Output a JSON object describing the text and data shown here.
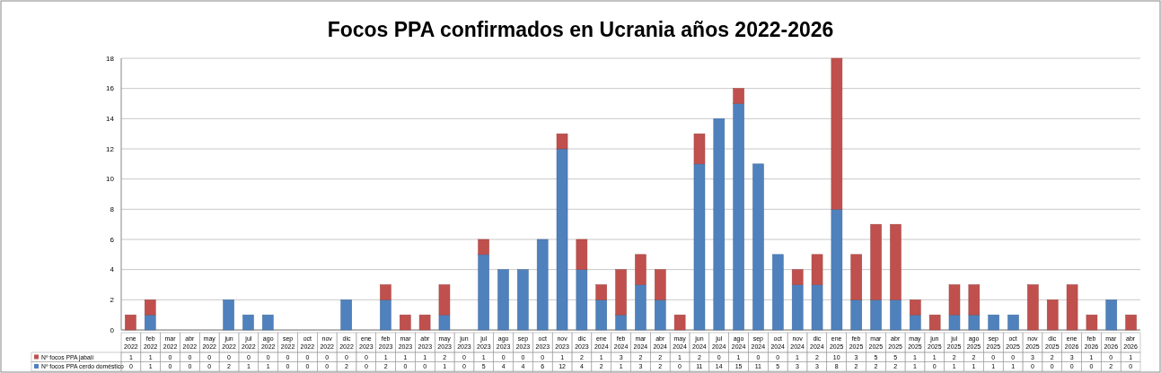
{
  "chart_data": {
    "type": "bar",
    "title": "Focos PPA confirmados en Ucrania años 2022-2026",
    "categories": [
      "ene 2022",
      "feb 2022",
      "mar 2022",
      "abr 2022",
      "may 2022",
      "jun 2022",
      "jul 2022",
      "ago 2022",
      "sep 2022",
      "oct 2022",
      "nov 2022",
      "dic 2022",
      "ene 2023",
      "feb 2023",
      "mar 2023",
      "abr 2023",
      "may 2023",
      "jun 2023",
      "jul 2023",
      "ago 2023",
      "sep 2023",
      "oct 2023",
      "nov 2023",
      "dic 2023",
      "ene 2024",
      "feb 2024",
      "mar 2024",
      "abr 2024",
      "may 2024",
      "jun 2024",
      "jul 2024",
      "ago 2024",
      "sep 2024",
      "oct 2024",
      "nov 2024",
      "dic 2024",
      "ene 2025",
      "feb 2025",
      "mar 2025",
      "abr 2025",
      "may 2025",
      "jun 2025",
      "jul 2025",
      "ago 2025",
      "sep 2025",
      "oct 2025",
      "nov 2025",
      "dic 2025",
      "ene 2026",
      "feb 2026",
      "mar 2026",
      "abr 2026"
    ],
    "series": [
      {
        "name": "Nº focos PPA cerdo doméstico",
        "color": "#4f81bd",
        "values": [
          0,
          1,
          0,
          0,
          0,
          2,
          1,
          1,
          0,
          0,
          0,
          2,
          0,
          2,
          0,
          0,
          1,
          0,
          5,
          4,
          4,
          6,
          12,
          4,
          2,
          1,
          3,
          2,
          0,
          11,
          14,
          15,
          11,
          5,
          3,
          3,
          8,
          2,
          2,
          2,
          1,
          0,
          1,
          1,
          1,
          1,
          0,
          0,
          0,
          0,
          2,
          0
        ]
      },
      {
        "name": "Nº focos PPA jabalí",
        "color": "#c0504d",
        "values": [
          1,
          1,
          0,
          0,
          0,
          0,
          0,
          0,
          0,
          0,
          0,
          0,
          0,
          1,
          1,
          1,
          2,
          0,
          1,
          0,
          0,
          0,
          1,
          2,
          1,
          3,
          2,
          2,
          1,
          2,
          0,
          1,
          0,
          0,
          1,
          2,
          10,
          3,
          5,
          5,
          1,
          1,
          2,
          2,
          0,
          0,
          3,
          2,
          3,
          1,
          0,
          1
        ]
      }
    ],
    "stacked": true,
    "ylim": [
      0,
      18
    ],
    "yticks": [
      0,
      2,
      4,
      6,
      8,
      10,
      12,
      14,
      16,
      18
    ],
    "grid": "y",
    "legend": "bottom",
    "data_labels": true
  }
}
